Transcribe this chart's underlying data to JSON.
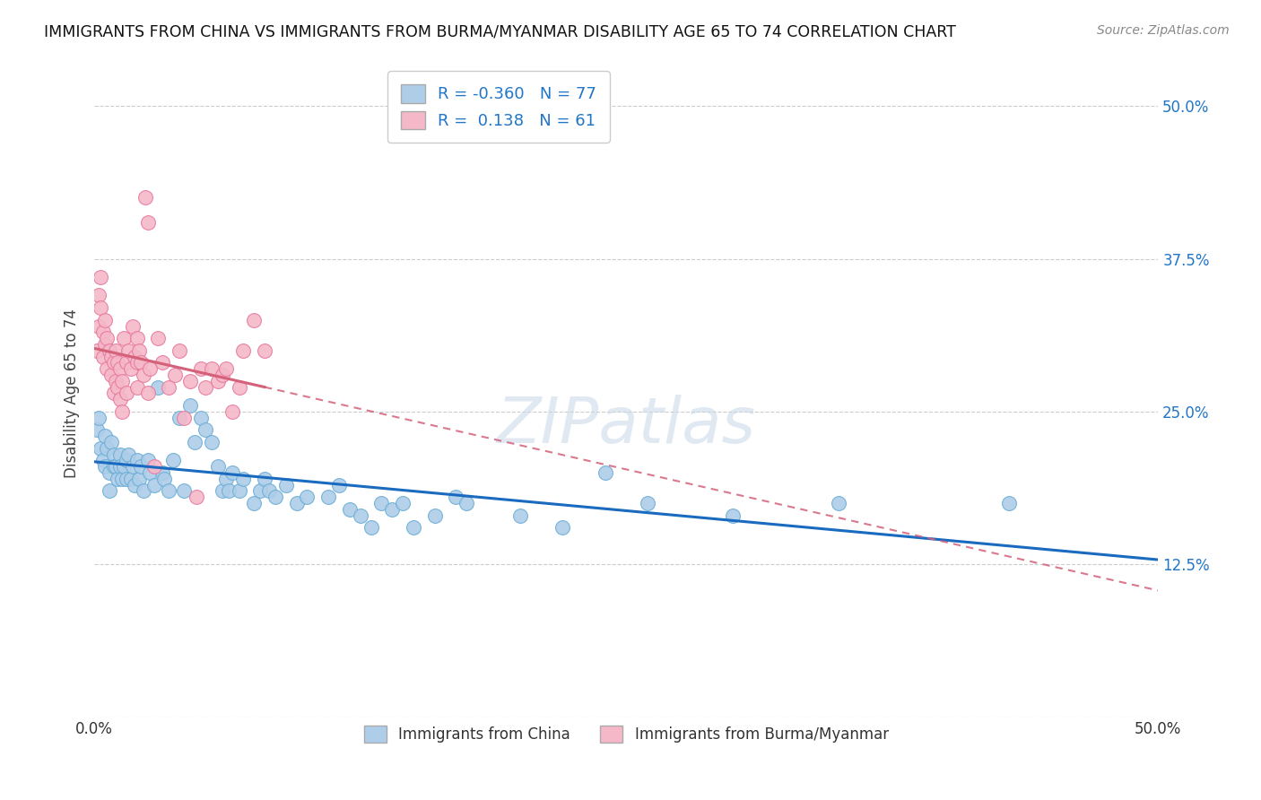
{
  "title": "IMMIGRANTS FROM CHINA VS IMMIGRANTS FROM BURMA/MYANMAR DISABILITY AGE 65 TO 74 CORRELATION CHART",
  "source": "Source: ZipAtlas.com",
  "ylabel": "Disability Age 65 to 74",
  "ytick_labels": [
    "",
    "12.5%",
    "25.0%",
    "37.5%",
    "50.0%"
  ],
  "ytick_values": [
    0,
    0.125,
    0.25,
    0.375,
    0.5
  ],
  "xlim": [
    0,
    0.5
  ],
  "ylim": [
    0,
    0.53
  ],
  "china_color": "#aecde8",
  "china_edge": "#6baed6",
  "burma_color": "#f4b8c8",
  "burma_edge": "#e879a0",
  "watermark_text": "ZIPatlas",
  "china_line_color": "#1a6bbf",
  "burma_line_color": "#d4607a",
  "china_points": [
    [
      0.001,
      0.235
    ],
    [
      0.002,
      0.245
    ],
    [
      0.003,
      0.22
    ],
    [
      0.004,
      0.21
    ],
    [
      0.005,
      0.23
    ],
    [
      0.005,
      0.205
    ],
    [
      0.006,
      0.22
    ],
    [
      0.007,
      0.2
    ],
    [
      0.007,
      0.185
    ],
    [
      0.008,
      0.225
    ],
    [
      0.009,
      0.215
    ],
    [
      0.009,
      0.205
    ],
    [
      0.01,
      0.205
    ],
    [
      0.011,
      0.195
    ],
    [
      0.012,
      0.215
    ],
    [
      0.012,
      0.205
    ],
    [
      0.013,
      0.195
    ],
    [
      0.014,
      0.205
    ],
    [
      0.015,
      0.21
    ],
    [
      0.015,
      0.195
    ],
    [
      0.016,
      0.215
    ],
    [
      0.017,
      0.195
    ],
    [
      0.018,
      0.205
    ],
    [
      0.019,
      0.19
    ],
    [
      0.02,
      0.21
    ],
    [
      0.021,
      0.195
    ],
    [
      0.022,
      0.205
    ],
    [
      0.023,
      0.185
    ],
    [
      0.025,
      0.21
    ],
    [
      0.026,
      0.2
    ],
    [
      0.028,
      0.19
    ],
    [
      0.03,
      0.27
    ],
    [
      0.032,
      0.2
    ],
    [
      0.033,
      0.195
    ],
    [
      0.035,
      0.185
    ],
    [
      0.037,
      0.21
    ],
    [
      0.04,
      0.245
    ],
    [
      0.042,
      0.185
    ],
    [
      0.045,
      0.255
    ],
    [
      0.047,
      0.225
    ],
    [
      0.05,
      0.245
    ],
    [
      0.052,
      0.235
    ],
    [
      0.055,
      0.225
    ],
    [
      0.058,
      0.205
    ],
    [
      0.06,
      0.185
    ],
    [
      0.062,
      0.195
    ],
    [
      0.063,
      0.185
    ],
    [
      0.065,
      0.2
    ],
    [
      0.068,
      0.185
    ],
    [
      0.07,
      0.195
    ],
    [
      0.075,
      0.175
    ],
    [
      0.078,
      0.185
    ],
    [
      0.08,
      0.195
    ],
    [
      0.082,
      0.185
    ],
    [
      0.085,
      0.18
    ],
    [
      0.09,
      0.19
    ],
    [
      0.095,
      0.175
    ],
    [
      0.1,
      0.18
    ],
    [
      0.11,
      0.18
    ],
    [
      0.115,
      0.19
    ],
    [
      0.12,
      0.17
    ],
    [
      0.125,
      0.165
    ],
    [
      0.13,
      0.155
    ],
    [
      0.135,
      0.175
    ],
    [
      0.14,
      0.17
    ],
    [
      0.145,
      0.175
    ],
    [
      0.15,
      0.155
    ],
    [
      0.16,
      0.165
    ],
    [
      0.17,
      0.18
    ],
    [
      0.175,
      0.175
    ],
    [
      0.2,
      0.165
    ],
    [
      0.22,
      0.155
    ],
    [
      0.24,
      0.2
    ],
    [
      0.26,
      0.175
    ],
    [
      0.3,
      0.165
    ],
    [
      0.35,
      0.175
    ],
    [
      0.43,
      0.175
    ]
  ],
  "burma_points": [
    [
      0.001,
      0.3
    ],
    [
      0.002,
      0.345
    ],
    [
      0.002,
      0.32
    ],
    [
      0.003,
      0.36
    ],
    [
      0.003,
      0.335
    ],
    [
      0.004,
      0.295
    ],
    [
      0.004,
      0.315
    ],
    [
      0.005,
      0.325
    ],
    [
      0.005,
      0.305
    ],
    [
      0.006,
      0.285
    ],
    [
      0.006,
      0.31
    ],
    [
      0.007,
      0.3
    ],
    [
      0.008,
      0.28
    ],
    [
      0.008,
      0.295
    ],
    [
      0.009,
      0.29
    ],
    [
      0.009,
      0.265
    ],
    [
      0.01,
      0.3
    ],
    [
      0.01,
      0.275
    ],
    [
      0.011,
      0.29
    ],
    [
      0.011,
      0.27
    ],
    [
      0.012,
      0.285
    ],
    [
      0.012,
      0.26
    ],
    [
      0.013,
      0.275
    ],
    [
      0.013,
      0.25
    ],
    [
      0.014,
      0.31
    ],
    [
      0.015,
      0.265
    ],
    [
      0.015,
      0.29
    ],
    [
      0.016,
      0.3
    ],
    [
      0.017,
      0.285
    ],
    [
      0.018,
      0.32
    ],
    [
      0.019,
      0.295
    ],
    [
      0.02,
      0.29
    ],
    [
      0.02,
      0.31
    ],
    [
      0.02,
      0.27
    ],
    [
      0.021,
      0.3
    ],
    [
      0.022,
      0.29
    ],
    [
      0.023,
      0.28
    ],
    [
      0.024,
      0.425
    ],
    [
      0.025,
      0.405
    ],
    [
      0.025,
      0.265
    ],
    [
      0.026,
      0.285
    ],
    [
      0.028,
      0.205
    ],
    [
      0.03,
      0.31
    ],
    [
      0.032,
      0.29
    ],
    [
      0.035,
      0.27
    ],
    [
      0.038,
      0.28
    ],
    [
      0.04,
      0.3
    ],
    [
      0.042,
      0.245
    ],
    [
      0.045,
      0.275
    ],
    [
      0.048,
      0.18
    ],
    [
      0.05,
      0.285
    ],
    [
      0.052,
      0.27
    ],
    [
      0.055,
      0.285
    ],
    [
      0.058,
      0.275
    ],
    [
      0.06,
      0.28
    ],
    [
      0.062,
      0.285
    ],
    [
      0.065,
      0.25
    ],
    [
      0.068,
      0.27
    ],
    [
      0.07,
      0.3
    ],
    [
      0.075,
      0.325
    ],
    [
      0.08,
      0.3
    ]
  ]
}
